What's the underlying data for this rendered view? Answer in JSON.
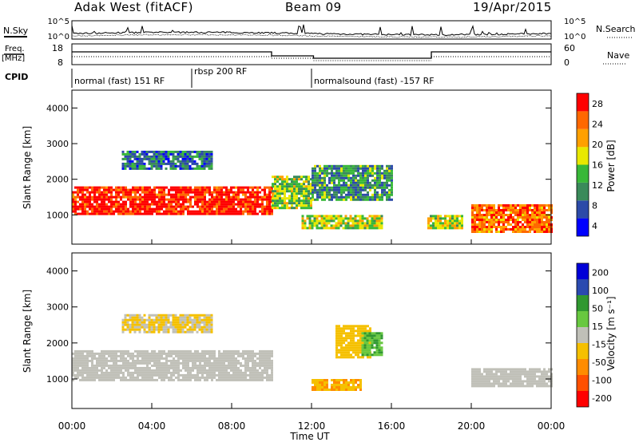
{
  "header": {
    "radar": "Adak West (fitACF)",
    "beam": "Beam 09",
    "date": "19/Apr/2015"
  },
  "top_panels": {
    "nsky_label": "N.Sky",
    "nsky_ticks": [
      "10^5",
      "10^0"
    ],
    "nsearch_label": "N.Search",
    "nsearch_ticks": [
      "10^5",
      "10^0"
    ],
    "freq_label": "Freq.",
    "freq_unit": "[MHz]",
    "freq_ticks": [
      "18",
      "8"
    ],
    "nave_label": "Nave",
    "nave_ticks": [
      "60",
      "0"
    ],
    "cpid_label": "CPID",
    "cpid_segments": [
      {
        "label": "normal (fast) 151 RF",
        "start": 0,
        "end": 6
      },
      {
        "label": "rbsp 200 RF",
        "start": 6,
        "end": 12
      },
      {
        "label": "normalsound (fast) -157 RF",
        "start": 12,
        "end": 24
      }
    ]
  },
  "colors": {
    "power": [
      "#0000ff",
      "#2c4aa8",
      "#3a8a5a",
      "#38b838",
      "#e8e800",
      "#ffa000",
      "#ff6800",
      "#ff0000"
    ],
    "velocity": [
      "#ff0000",
      "#ff5000",
      "#ff8c00",
      "#f5c000",
      "#c0c0b8",
      "#68c840",
      "#309830",
      "#2a4ab0",
      "#0000d8"
    ]
  },
  "chart_data": [
    {
      "type": "heatmap",
      "parameter": "Power",
      "ylabel": "Slant Range [km]",
      "ylim": [
        180,
        4500
      ],
      "yticks": [
        1000,
        2000,
        3000,
        4000
      ],
      "x_ticks": [
        "00:00",
        "04:00",
        "08:00",
        "12:00",
        "16:00",
        "20:00",
        "00:00"
      ],
      "xlim_hours": [
        0,
        24
      ],
      "colorbar": {
        "label": "Power [dB]",
        "ticks": [
          "4",
          "8",
          "12",
          "16",
          "20",
          "24",
          "28"
        ],
        "range": [
          0,
          30
        ]
      },
      "regions": [
        {
          "t": [
            0,
            10
          ],
          "range_km": [
            1000,
            1800
          ],
          "value_db": 28
        },
        {
          "t": [
            2.5,
            7
          ],
          "range_km": [
            2300,
            2800
          ],
          "value_db": 8
        },
        {
          "t": [
            10,
            12
          ],
          "range_km": [
            1200,
            2100
          ],
          "value_db": 14
        },
        {
          "t": [
            12,
            16
          ],
          "range_km": [
            1400,
            2400
          ],
          "value_db": 10
        },
        {
          "t": [
            11.5,
            15.5
          ],
          "range_km": [
            650,
            1000
          ],
          "value_db": 16
        },
        {
          "t": [
            17.8,
            19.6
          ],
          "range_km": [
            600,
            1000
          ],
          "value_db": 16
        },
        {
          "t": [
            20,
            24
          ],
          "range_km": [
            500,
            1300
          ],
          "value_db": 24
        }
      ]
    },
    {
      "type": "heatmap",
      "parameter": "Velocity",
      "ylabel": "Slant Range [km]",
      "ylim": [
        180,
        4500
      ],
      "yticks": [
        1000,
        2000,
        3000,
        4000
      ],
      "x_ticks": [
        "00:00",
        "04:00",
        "08:00",
        "12:00",
        "16:00",
        "20:00",
        "00:00"
      ],
      "xlim_hours": [
        0,
        24
      ],
      "xlabel": "Time UT",
      "colorbar": {
        "label": "Velocity [m s⁻¹]",
        "ticks": [
          "200",
          "100",
          "50",
          "15",
          "-15",
          "-50",
          "-100",
          "-200"
        ],
        "range": [
          -250,
          250
        ]
      },
      "regions": [
        {
          "t": [
            0,
            10
          ],
          "range_km": [
            1000,
            1800
          ],
          "value_ms": 0
        },
        {
          "t": [
            2.5,
            7
          ],
          "range_km": [
            2300,
            2800
          ],
          "value_ms": -30
        },
        {
          "t": [
            12,
            14.5
          ],
          "range_km": [
            700,
            1000
          ],
          "value_ms": -80
        },
        {
          "t": [
            13.2,
            15
          ],
          "range_km": [
            1600,
            2500
          ],
          "value_ms": -60
        },
        {
          "t": [
            14.5,
            15.5
          ],
          "range_km": [
            1700,
            2300
          ],
          "value_ms": 80
        },
        {
          "t": [
            20,
            24
          ],
          "range_km": [
            800,
            1300
          ],
          "value_ms": 0
        }
      ]
    }
  ]
}
